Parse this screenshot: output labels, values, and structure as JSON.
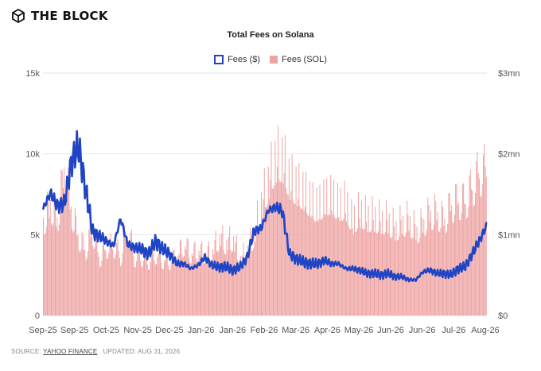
{
  "brand": {
    "name": "THE BLOCK"
  },
  "footer": {
    "source_label": "SOURCE:",
    "source": "YAHOO FINANCE",
    "updated_label": "UPDATED:",
    "updated": "AUG 31, 2026"
  },
  "colors": {
    "line": "#1f44c4",
    "bars": "#eea4a3",
    "grid": "#e6e6e6"
  },
  "chart_data": {
    "type": "bar+line",
    "title": "Total Fees on Solana",
    "legend": [
      "Fees ($)",
      "Fees (SOL)"
    ],
    "legend_position": "top-center",
    "grid": true,
    "x_tick_labels": [
      "Sep-25",
      "Sep-25",
      "Oct-25",
      "Nov-25",
      "Dec-25",
      "Jan-26",
      "Jan-26",
      "Feb-26",
      "Mar-26",
      "Apr-26",
      "May-26",
      "Jun-26",
      "Jun-26",
      "Jul-26",
      "Aug-26"
    ],
    "left_axis": {
      "series": "Fees (SOL)",
      "ticks": [
        "0",
        "5k",
        "10k",
        "15k"
      ],
      "ylim": [
        0,
        15000
      ]
    },
    "right_axis": {
      "series": "Fees ($)",
      "ticks": [
        "$0",
        "$1mn",
        "$2mn",
        "$3mn"
      ],
      "ylim": [
        0,
        3000000
      ]
    },
    "series": [
      {
        "name": "Fees (SOL)",
        "type": "bar",
        "axis": "left",
        "weekly_values": [
          6200,
          7400,
          6300,
          9800,
          7000,
          5200,
          4300,
          5600,
          3800,
          4500,
          4600,
          3900,
          5900,
          3800,
          3900,
          3600,
          4100,
          3700,
          3600,
          3900,
          4700,
          4100,
          4300,
          4100,
          4200,
          5200,
          4800,
          5100,
          3700,
          4300,
          5400,
          7500,
          9000,
          10500,
          10600,
          9200,
          8700,
          8300,
          7700,
          7300,
          7800,
          8000,
          7400,
          7600,
          6300,
          7000,
          6600,
          6600,
          6400,
          6400,
          5800,
          6200,
          6400,
          5600,
          6100,
          6800,
          6800,
          6300,
          7300,
          7600,
          7500,
          8500,
          9400,
          9600
        ]
      },
      {
        "name": "Fees ($)",
        "type": "line",
        "axis": "right",
        "weekly_values": [
          1320000,
          1520000,
          1360000,
          1380000,
          1900000,
          2100000,
          1580000,
          1040000,
          980000,
          920000,
          860000,
          1200000,
          880000,
          840000,
          820000,
          760000,
          920000,
          820000,
          760000,
          640000,
          640000,
          580000,
          620000,
          720000,
          620000,
          600000,
          600000,
          560000,
          600000,
          720000,
          1050000,
          1080000,
          1300000,
          1340000,
          1300000,
          760000,
          700000,
          660000,
          640000,
          640000,
          680000,
          640000,
          640000,
          580000,
          580000,
          560000,
          520000,
          520000,
          500000,
          520000,
          480000,
          480000,
          440000,
          440000,
          540000,
          560000,
          520000,
          520000,
          500000,
          580000,
          600000,
          760000,
          920000,
          1100000
        ]
      }
    ]
  }
}
